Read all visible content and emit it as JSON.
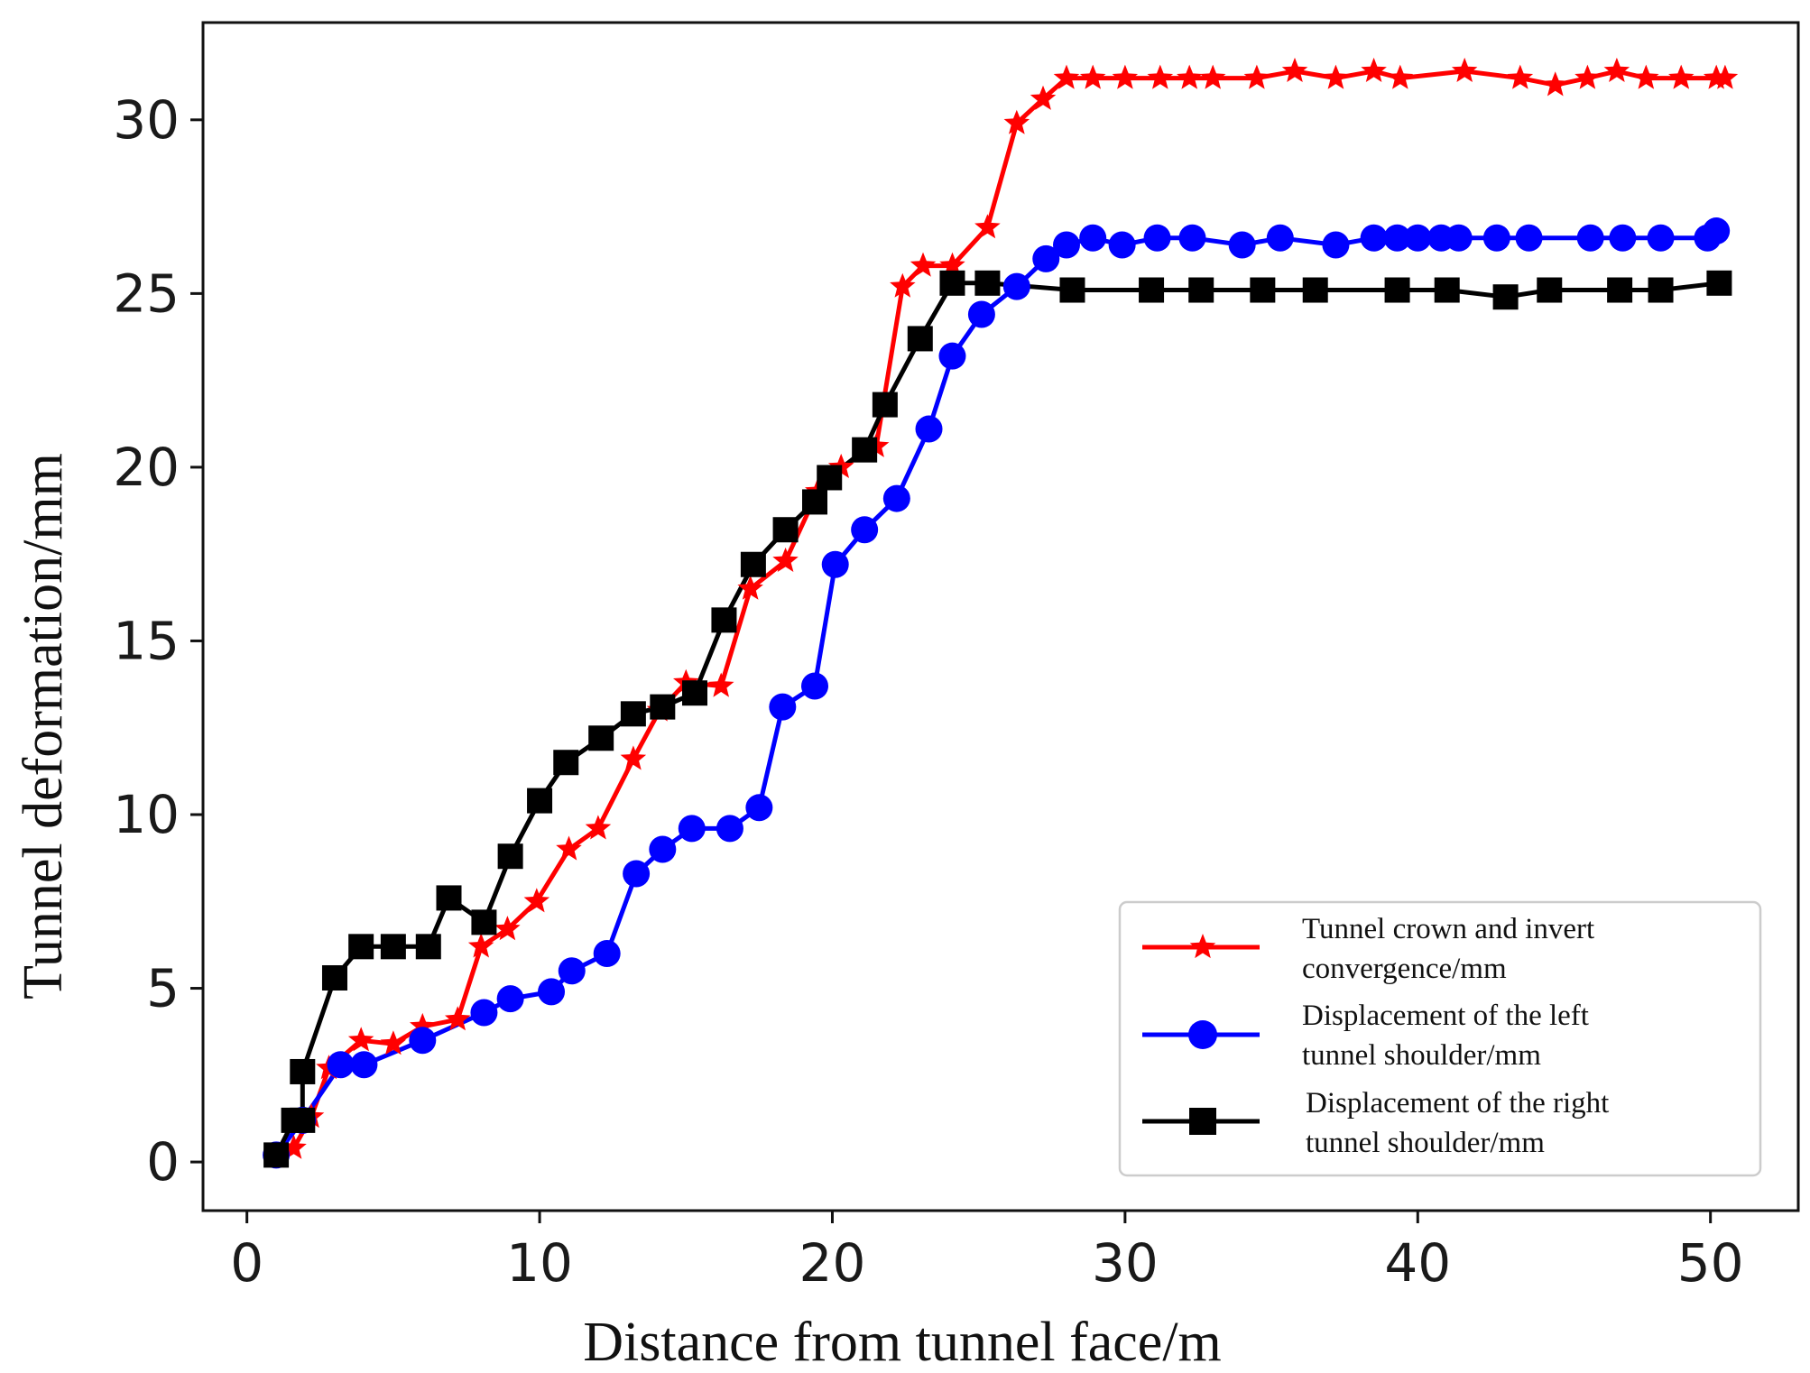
{
  "chart_data": {
    "type": "line",
    "title": "",
    "xlabel": "Distance from tunnel face/m",
    "ylabel": "Tunnel deformation/mm",
    "xlim": [
      -1.5,
      53
    ],
    "ylim": [
      -1.4,
      32.8
    ],
    "xticks": [
      0,
      10,
      20,
      30,
      40,
      50
    ],
    "yticks": [
      0,
      5,
      10,
      15,
      20,
      25,
      30
    ],
    "xtick_labels": [
      "0",
      "10",
      "20",
      "30",
      "40",
      "50"
    ],
    "ytick_labels": [
      "0",
      "5",
      "10",
      "15",
      "20",
      "25",
      "30"
    ],
    "grid": false,
    "legend_position": "lower-right",
    "series": [
      {
        "name": "Tunnel crown and invert convergence/mm",
        "legend_lines": [
          "Tunnel crown and invert",
          "convergence/mm"
        ],
        "color": "#ff0000",
        "marker": "star",
        "points": [
          [
            1.0,
            0.2
          ],
          [
            1.6,
            0.4
          ],
          [
            2.2,
            1.3
          ],
          [
            2.8,
            2.7
          ],
          [
            3.9,
            3.5
          ],
          [
            5.0,
            3.4
          ],
          [
            6.0,
            3.9
          ],
          [
            7.2,
            4.1
          ],
          [
            8.0,
            6.2
          ],
          [
            8.9,
            6.7
          ],
          [
            9.9,
            7.5
          ],
          [
            11.0,
            9.0
          ],
          [
            12.0,
            9.6
          ],
          [
            13.2,
            11.6
          ],
          [
            14.1,
            13.0
          ],
          [
            15.0,
            13.8
          ],
          [
            16.2,
            13.7
          ],
          [
            17.2,
            16.5
          ],
          [
            18.4,
            17.3
          ],
          [
            19.5,
            19.3
          ],
          [
            20.3,
            20.0
          ],
          [
            21.5,
            20.6
          ],
          [
            22.4,
            25.2
          ],
          [
            23.1,
            25.8
          ],
          [
            24.1,
            25.8
          ],
          [
            25.3,
            26.9
          ],
          [
            26.3,
            29.9
          ],
          [
            27.2,
            30.6
          ],
          [
            28.0,
            31.2
          ],
          [
            28.9,
            31.2
          ],
          [
            30.0,
            31.2
          ],
          [
            31.2,
            31.2
          ],
          [
            32.2,
            31.2
          ],
          [
            33.0,
            31.2
          ],
          [
            34.5,
            31.2
          ],
          [
            35.8,
            31.4
          ],
          [
            37.2,
            31.2
          ],
          [
            38.5,
            31.4
          ],
          [
            39.4,
            31.2
          ],
          [
            41.6,
            31.4
          ],
          [
            43.5,
            31.2
          ],
          [
            44.7,
            31.0
          ],
          [
            45.8,
            31.2
          ],
          [
            46.8,
            31.4
          ],
          [
            47.8,
            31.2
          ],
          [
            49.0,
            31.2
          ],
          [
            50.2,
            31.2
          ],
          [
            50.5,
            31.2
          ]
        ]
      },
      {
        "name": "Displacement of the left tunnel shoulder/mm",
        "legend_lines": [
          "Displacement of the left",
          "tunnel shoulder/mm"
        ],
        "color": "#0000ff",
        "marker": "circle",
        "points": [
          [
            1.0,
            0.2
          ],
          [
            1.9,
            1.2
          ],
          [
            3.2,
            2.8
          ],
          [
            4.0,
            2.8
          ],
          [
            6.0,
            3.5
          ],
          [
            8.1,
            4.3
          ],
          [
            9.0,
            4.7
          ],
          [
            10.4,
            4.9
          ],
          [
            11.1,
            5.5
          ],
          [
            12.3,
            6.0
          ],
          [
            13.3,
            8.3
          ],
          [
            14.2,
            9.0
          ],
          [
            15.2,
            9.6
          ],
          [
            16.5,
            9.6
          ],
          [
            17.5,
            10.2
          ],
          [
            18.3,
            13.1
          ],
          [
            19.4,
            13.7
          ],
          [
            20.1,
            17.2
          ],
          [
            21.1,
            18.2
          ],
          [
            22.2,
            19.1
          ],
          [
            23.3,
            21.1
          ],
          [
            24.1,
            23.2
          ],
          [
            25.1,
            24.4
          ],
          [
            26.3,
            25.2
          ],
          [
            27.3,
            26.0
          ],
          [
            28.0,
            26.4
          ],
          [
            28.9,
            26.6
          ],
          [
            29.9,
            26.4
          ],
          [
            31.1,
            26.6
          ],
          [
            32.3,
            26.6
          ],
          [
            34.0,
            26.4
          ],
          [
            35.3,
            26.6
          ],
          [
            37.2,
            26.4
          ],
          [
            38.5,
            26.6
          ],
          [
            39.3,
            26.6
          ],
          [
            40.0,
            26.6
          ],
          [
            40.8,
            26.6
          ],
          [
            41.4,
            26.6
          ],
          [
            42.7,
            26.6
          ],
          [
            43.8,
            26.6
          ],
          [
            45.9,
            26.6
          ],
          [
            47.0,
            26.6
          ],
          [
            48.3,
            26.6
          ],
          [
            49.9,
            26.6
          ],
          [
            50.2,
            26.8
          ]
        ]
      },
      {
        "name": "Displacement of the right tunnel shoulder/mm",
        "legend_lines": [
          "Displacement of the right",
          "tunnel shoulder/mm"
        ],
        "color": "#000000",
        "marker": "square",
        "points": [
          [
            1.0,
            0.2
          ],
          [
            1.6,
            1.2
          ],
          [
            1.9,
            1.2
          ],
          [
            1.9,
            2.6
          ],
          [
            3.0,
            5.3
          ],
          [
            3.9,
            6.2
          ],
          [
            5.0,
            6.2
          ],
          [
            6.2,
            6.2
          ],
          [
            6.9,
            7.6
          ],
          [
            8.1,
            6.9
          ],
          [
            9.0,
            8.8
          ],
          [
            10.0,
            10.4
          ],
          [
            10.9,
            11.5
          ],
          [
            12.1,
            12.2
          ],
          [
            13.2,
            12.9
          ],
          [
            14.2,
            13.1
          ],
          [
            15.3,
            13.5
          ],
          [
            16.3,
            15.6
          ],
          [
            17.3,
            17.2
          ],
          [
            18.4,
            18.2
          ],
          [
            19.4,
            19.0
          ],
          [
            19.9,
            19.7
          ],
          [
            21.1,
            20.5
          ],
          [
            21.8,
            21.8
          ],
          [
            23.0,
            23.7
          ],
          [
            24.1,
            25.3
          ],
          [
            25.3,
            25.3
          ],
          [
            28.2,
            25.1
          ],
          [
            30.9,
            25.1
          ],
          [
            32.6,
            25.1
          ],
          [
            34.7,
            25.1
          ],
          [
            36.5,
            25.1
          ],
          [
            39.3,
            25.1
          ],
          [
            41.0,
            25.1
          ],
          [
            43.0,
            24.9
          ],
          [
            44.5,
            25.1
          ],
          [
            46.9,
            25.1
          ],
          [
            48.3,
            25.1
          ],
          [
            50.3,
            25.3
          ]
        ]
      }
    ]
  }
}
